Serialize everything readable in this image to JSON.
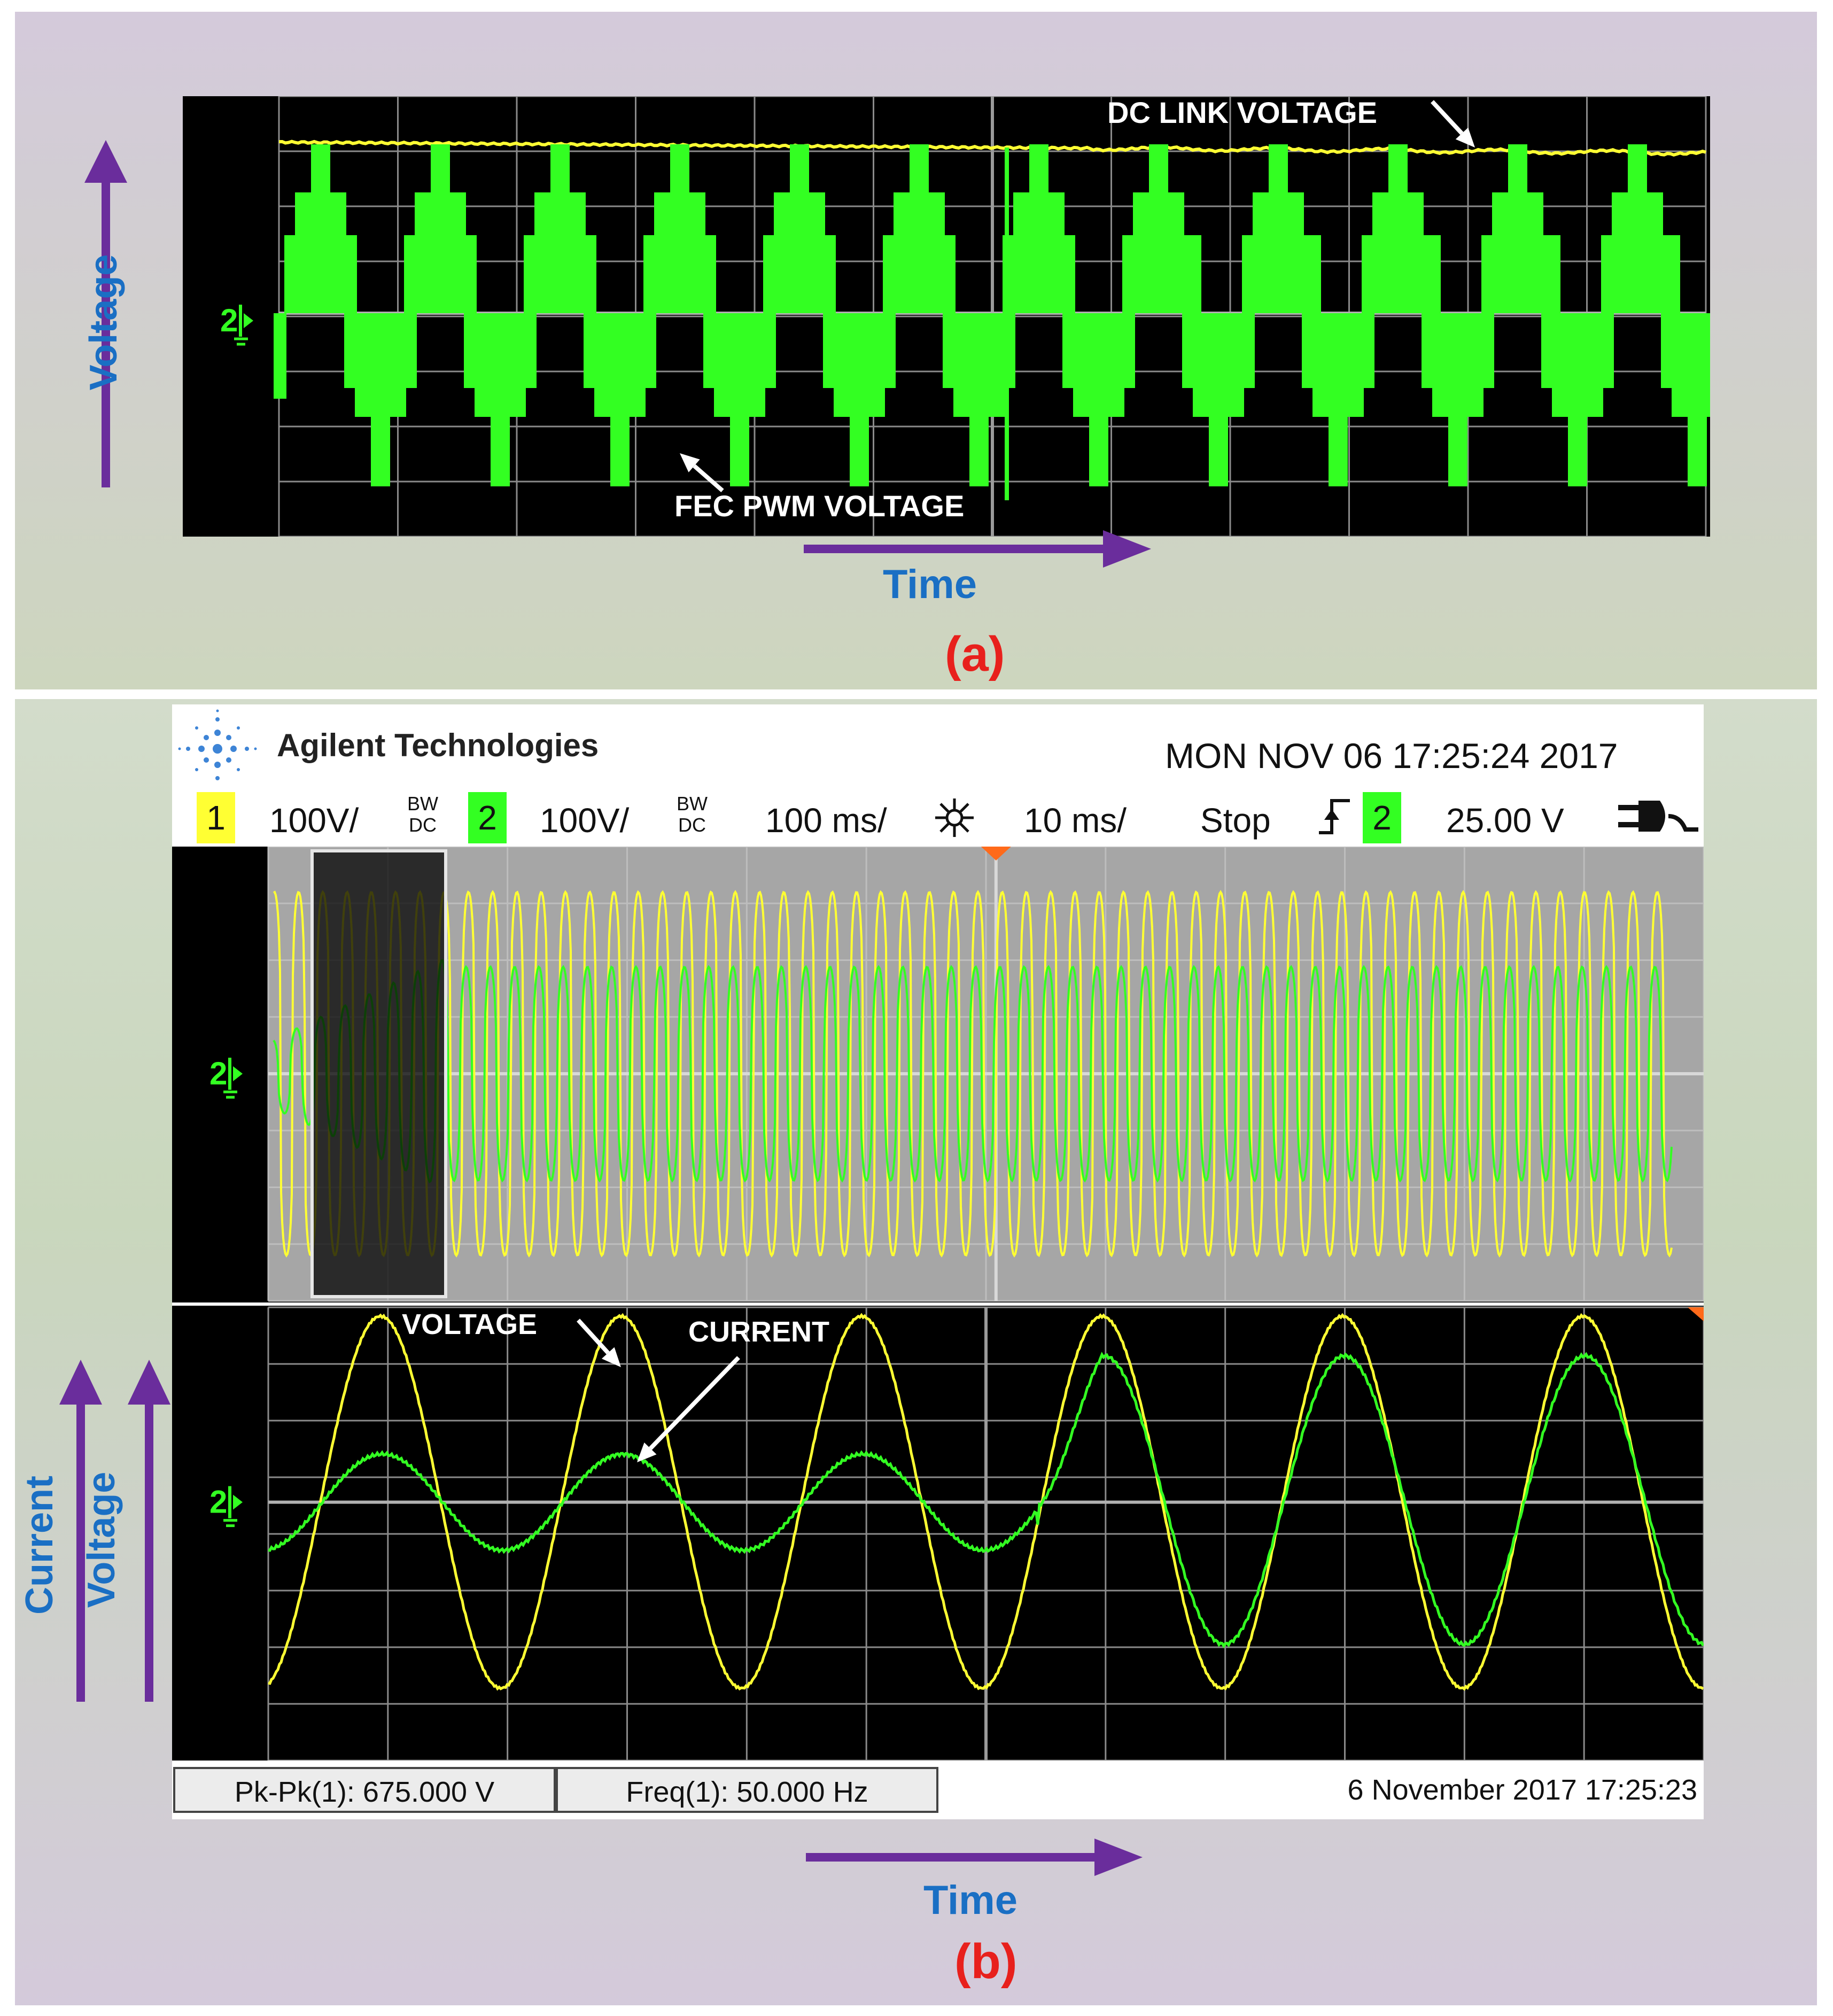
{
  "panel_a": {
    "caption": "(a)",
    "y_axis_label": "Voltage",
    "x_axis_label": "Time",
    "annotations": {
      "dc_link": "DC LINK VOLTAGE",
      "fec_pwm": "FEC PWM VOLTAGE"
    },
    "ground_marker": "2",
    "colors": {
      "dc_link_trace": "#ffff33",
      "pwm_trace": "#33ff22",
      "arrow": "#6a2d9c",
      "axis_text": "#1a6fc4",
      "caption": "#e8201c"
    }
  },
  "panel_b": {
    "caption": "(b)",
    "brand": "Agilent Technologies",
    "datetime": "MON NOV 06 17:25:24 2017",
    "channel1": {
      "number": "1",
      "scale": "100V/",
      "coupling_top": "BW",
      "coupling_bottom": "DC",
      "color": "#ffff33"
    },
    "channel2": {
      "number": "2",
      "scale": "100V/",
      "coupling_top": "BW",
      "coupling_bottom": "DC",
      "color": "#33ff22"
    },
    "timebase": "100 ms/",
    "zoom_timebase": "10 ms/",
    "run_state": "Stop",
    "trigger_channel": "2",
    "trigger_level": "25.00 V",
    "ground_marker_top": "2",
    "ground_marker_bottom": "2",
    "annotations": {
      "voltage": "VOLTAGE",
      "current": "CURRENT"
    },
    "y_axis_labels": [
      "Current",
      "Voltage"
    ],
    "x_axis_label": "Time",
    "measurements": [
      {
        "label": "Pk-Pk(1): 675.000 V"
      },
      {
        "label": "Freq(1): 50.000 Hz"
      }
    ],
    "footer_datetime": "6 November 2017  17:25:23",
    "icons": [
      "agilent-logo-icon",
      "sun-icon",
      "trigger-edge-icon",
      "power-plug-icon",
      "ground-marker-icon"
    ]
  }
}
